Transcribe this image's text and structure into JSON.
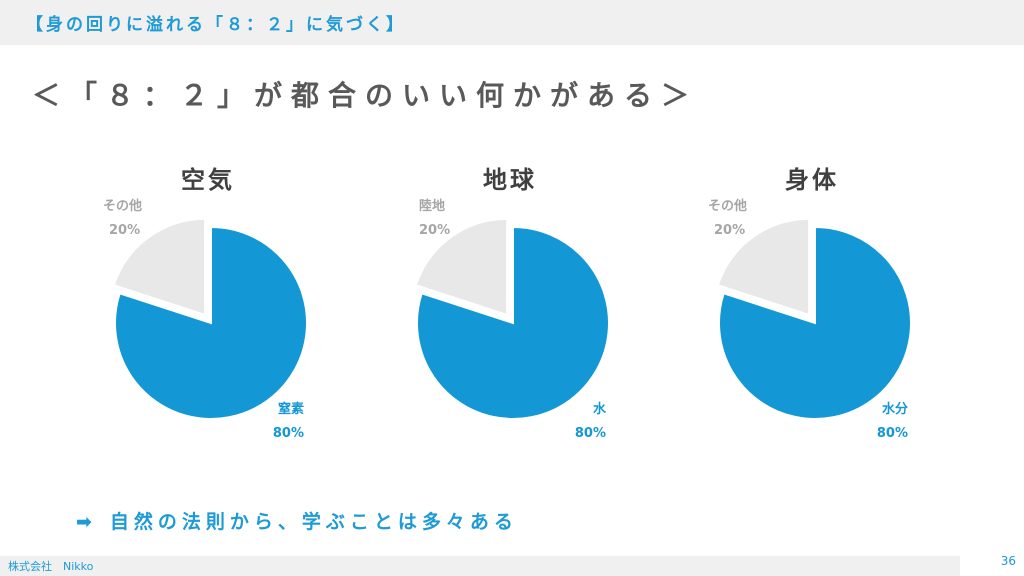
{
  "header": {
    "title": "【身の回りに溢れる「８：２」に気づく】"
  },
  "slide": {
    "heading": "＜「８：２」が都合のいい何かがある＞"
  },
  "chart_data": [
    {
      "type": "pie",
      "title": "空気",
      "slices": [
        {
          "label": "窒素",
          "value": 80,
          "value_label": "80%",
          "color": "#1497d5"
        },
        {
          "label": "その他",
          "value": 20,
          "value_label": "20%",
          "color": "#e8e8e8"
        }
      ]
    },
    {
      "type": "pie",
      "title": "地球",
      "slices": [
        {
          "label": "水",
          "value": 80,
          "value_label": "80%",
          "color": "#1497d5"
        },
        {
          "label": "陸地",
          "value": 20,
          "value_label": "20%",
          "color": "#e8e8e8"
        }
      ]
    },
    {
      "type": "pie",
      "title": "身体",
      "slices": [
        {
          "label": "水分",
          "value": 80,
          "value_label": "80%",
          "color": "#1497d5"
        },
        {
          "label": "その他",
          "value": 20,
          "value_label": "20%",
          "color": "#e8e8e8"
        }
      ]
    }
  ],
  "conclusion": {
    "arrow": "➡",
    "text": "自然の法則から、学ぶことは多々ある"
  },
  "footer": {
    "company": "株式会社　Nikko",
    "page_number": "36"
  }
}
